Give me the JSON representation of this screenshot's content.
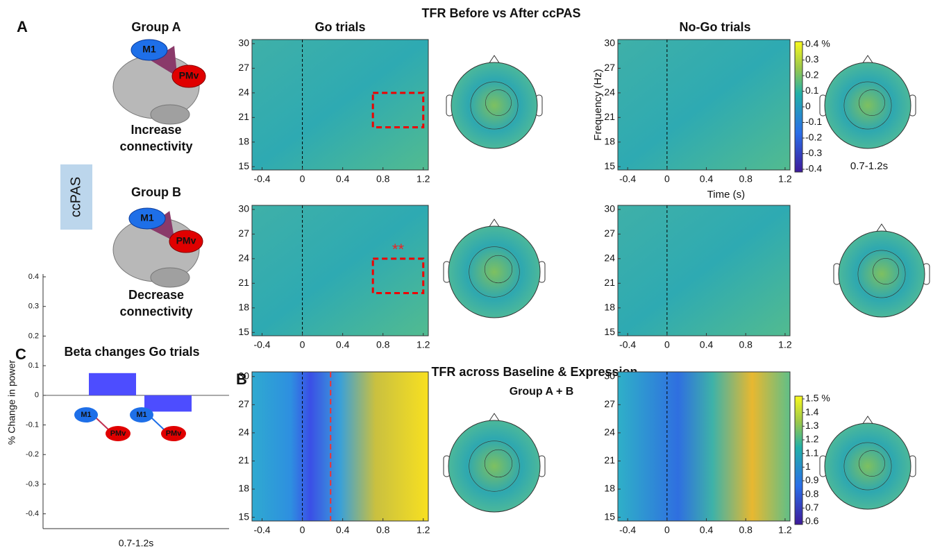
{
  "panel_labels": {
    "a": "A",
    "b": "B",
    "c": "C"
  },
  "title_a": "TFR Before vs After ccPAS",
  "go_title": "Go trials",
  "nogo_title": "No-Go trials",
  "group_a": {
    "title": "Group A",
    "m1": "M1",
    "pmv": "PMv",
    "caption_1": "Increase",
    "caption_2": "connectivity"
  },
  "group_b": {
    "title": "Group B",
    "m1": "M1",
    "pmv": "PMv",
    "caption_1": "Decrease",
    "caption_2": "connectivity"
  },
  "ccpas": "ccPAS",
  "significance": "**",
  "tfr_axes": {
    "xlim": [
      -0.5,
      1.25
    ],
    "xticks": [
      -0.4,
      0,
      0.4,
      0.8,
      1.2
    ],
    "ylim": [
      14.6,
      30.5
    ],
    "yticks": [
      15,
      18,
      21,
      24,
      27,
      30
    ],
    "ylabel": "Frequency (Hz)",
    "xlabel": "Time (s)"
  },
  "colorbar_a": {
    "clim": [
      -0.4,
      0.4
    ],
    "ticks": [
      {
        "value": 0.4,
        "label": "0.4 %"
      },
      0.3,
      0.2,
      0.1,
      0,
      -0.1,
      -0.2,
      -0.3,
      -0.4
    ]
  },
  "topo_window": "0.7-1.2s",
  "title_b": "TFR across Baseline & Expression",
  "subtitle_b": "Group A + B",
  "colorbar_b": {
    "clim": [
      0.6,
      1.5
    ],
    "ticks": [
      {
        "value": 1.5,
        "label": "1.5 %"
      },
      1.4,
      1.3,
      1.2,
      1.1,
      1,
      0.9,
      0.8,
      0.7,
      0.6
    ]
  },
  "chart_data": {
    "type": "bar",
    "title": "Beta changes Go trials",
    "ylabel": "% Change in power",
    "xlabel": "0.7-1.2s",
    "categories": [
      null,
      null
    ],
    "icons": [
      {
        "m1": "M1",
        "pmv": "PMv"
      },
      {
        "m1": "M1",
        "pmv": "PMv"
      }
    ],
    "values": [
      0.075,
      -0.055
    ],
    "color": "#4d4dff",
    "ylim": [
      -0.45,
      0.4
    ],
    "yticks": [
      -0.4,
      -0.3,
      -0.2,
      -0.1,
      0,
      0.1,
      0.2,
      0.3,
      0.4
    ]
  }
}
